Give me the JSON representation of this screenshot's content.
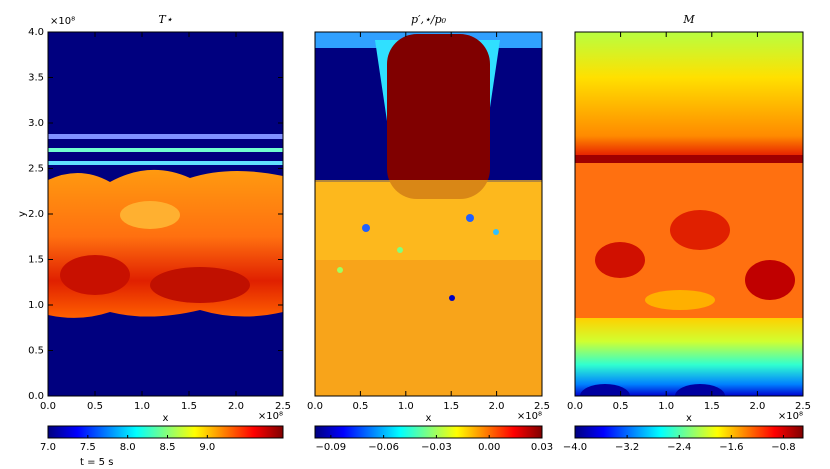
{
  "chart_data": [
    {
      "type": "heatmap",
      "title": "T⋆",
      "xlabel": "x",
      "ylabel": "y",
      "xlim": [
        0,
        2.5
      ],
      "xticks": [
        {
          "value": 0,
          "label": "0.0"
        },
        0.5,
        {
          "value": 1,
          "label": "1.0"
        },
        1.5,
        {
          "value": 2,
          "label": "2.0"
        },
        2.5
      ],
      "x_offset": "×10⁸",
      "ylim": [
        0,
        4
      ],
      "yticks": [
        {
          "value": 0,
          "label": "0.0"
        },
        0.5,
        {
          "value": 1,
          "label": "1.0"
        },
        1.5,
        {
          "value": 2,
          "label": "2.0"
        },
        2.5,
        {
          "value": 3,
          "label": "3.0"
        },
        3.5,
        {
          "value": 4,
          "label": "4.0"
        }
      ],
      "y_offset": "×10⁸",
      "clim": [
        7.0,
        9.95
      ],
      "cticks": [
        {
          "value": 7,
          "label": "7.0"
        },
        7.5,
        {
          "value": 8,
          "label": "8.0"
        },
        8.5,
        {
          "value": 9,
          "label": "9.0"
        }
      ],
      "annotation": "t = 5 s"
    },
    {
      "type": "heatmap",
      "title": "p′,⋆/p₀",
      "xlabel": "x",
      "xlim": [
        0,
        2.5
      ],
      "xticks": [
        {
          "value": 0,
          "label": "0.0"
        },
        0.5,
        {
          "value": 1,
          "label": "1.0"
        },
        1.5,
        {
          "value": 2,
          "label": "2.0"
        },
        2.5
      ],
      "x_offset": "×10⁸",
      "ylim": [
        0,
        4
      ],
      "clim": [
        -0.099,
        0.03
      ],
      "cticks": [
        {
          "value": -0.09,
          "label": "−0.09"
        },
        {
          "value": -0.06,
          "label": "−0.06"
        },
        {
          "value": -0.03,
          "label": "−0.03"
        },
        {
          "value": 0,
          "label": "0.00"
        },
        0.03
      ]
    },
    {
      "type": "heatmap",
      "title": "M",
      "xlabel": "x",
      "xlim": [
        0,
        2.5
      ],
      "xticks": [
        {
          "value": 0,
          "label": "0.0"
        },
        0.5,
        {
          "value": 1,
          "label": "1.0"
        },
        1.5,
        {
          "value": 2,
          "label": "2.0"
        },
        2.5
      ],
      "x_offset": "×10⁸",
      "ylim": [
        0,
        4
      ],
      "clim": [
        -4.0,
        -0.5
      ],
      "cticks": [
        {
          "value": -4,
          "label": "−4.0"
        },
        {
          "value": -3.2,
          "label": "−3.2"
        },
        {
          "value": -2.4,
          "label": "−2.4"
        },
        {
          "value": -1.6,
          "label": "−1.6"
        },
        {
          "value": -0.8,
          "label": "−0.8"
        }
      ]
    }
  ]
}
